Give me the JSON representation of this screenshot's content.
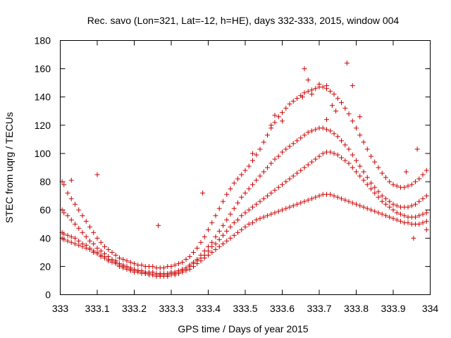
{
  "chart_data": {
    "type": "scatter",
    "title": "Rec. savo (Lon=321, Lat=-12, h=HE), days 332-333, 2015, window 004",
    "xlabel": "GPS time / Days of year 2015",
    "ylabel": "STEC from uqrg / TECUs",
    "xlim": [
      333,
      334
    ],
    "ylim": [
      0,
      180
    ],
    "xticks": [
      "333",
      "333.1",
      "333.2",
      "333.3",
      "333.4",
      "333.5",
      "333.6",
      "333.7",
      "333.8",
      "333.9",
      "334"
    ],
    "yticks": [
      "0",
      "20",
      "40",
      "60",
      "80",
      "100",
      "120",
      "140",
      "160",
      "180"
    ],
    "grid": false,
    "legend": "none",
    "marker": "plus",
    "color": "#cc0000",
    "series": [
      {
        "x": [
          333.005,
          333.01,
          333.02,
          333.03,
          333.04,
          333.05,
          333.06,
          333.07,
          333.08,
          333.09,
          333.1,
          333.11,
          333.12,
          333.13,
          333.14,
          333.15,
          333.16,
          333.17,
          333.18,
          333.19,
          333.2,
          333.21,
          333.22,
          333.23,
          333.24,
          333.25,
          333.26,
          333.27,
          333.28,
          333.29,
          333.3,
          333.31,
          333.32,
          333.33,
          333.34,
          333.35,
          333.36,
          333.37,
          333.38,
          333.39,
          333.4,
          333.41,
          333.42,
          333.43,
          333.44,
          333.45,
          333.46,
          333.47,
          333.48,
          333.49,
          333.5,
          333.51,
          333.52,
          333.53,
          333.54,
          333.55,
          333.56,
          333.57,
          333.58,
          333.59,
          333.6,
          333.61,
          333.62,
          333.63,
          333.64,
          333.65,
          333.66,
          333.67,
          333.68,
          333.69,
          333.7,
          333.71,
          333.72,
          333.73,
          333.74,
          333.75,
          333.76,
          333.77,
          333.78,
          333.79,
          333.8,
          333.81,
          333.82,
          333.83,
          333.84,
          333.85,
          333.86,
          333.87,
          333.88,
          333.89,
          333.9,
          333.91,
          333.92,
          333.93,
          333.94,
          333.95,
          333.96,
          333.97,
          333.98,
          333.99
        ],
        "y": [
          80,
          78,
          72,
          68,
          64,
          60,
          56,
          52,
          48,
          44,
          40,
          37,
          34,
          32,
          30,
          28,
          26,
          25,
          24,
          23,
          22,
          21,
          21,
          20,
          20,
          20,
          19,
          19,
          19,
          20,
          20,
          21,
          22,
          23,
          25,
          27,
          30,
          33,
          37,
          41,
          46,
          51,
          56,
          61,
          66,
          71,
          75,
          79,
          82,
          85,
          88,
          91,
          95,
          99,
          103,
          108,
          113,
          118,
          122,
          126,
          129,
          132,
          135,
          137,
          139,
          141,
          143,
          144,
          145,
          146,
          147,
          147,
          146,
          144,
          142,
          139,
          136,
          132,
          128,
          123,
          118,
          113,
          108,
          103,
          98,
          94,
          90,
          86,
          83,
          80,
          78,
          77,
          76,
          76,
          77,
          78,
          80,
          82,
          85,
          88
        ]
      },
      {
        "x": [
          333.005,
          333.01,
          333.02,
          333.03,
          333.04,
          333.05,
          333.06,
          333.07,
          333.08,
          333.09,
          333.1,
          333.11,
          333.12,
          333.13,
          333.14,
          333.15,
          333.16,
          333.17,
          333.18,
          333.19,
          333.2,
          333.21,
          333.22,
          333.23,
          333.24,
          333.25,
          333.26,
          333.27,
          333.28,
          333.29,
          333.3,
          333.31,
          333.32,
          333.33,
          333.34,
          333.35,
          333.36,
          333.37,
          333.38,
          333.39,
          333.4,
          333.41,
          333.42,
          333.43,
          333.44,
          333.45,
          333.46,
          333.47,
          333.48,
          333.49,
          333.5,
          333.51,
          333.52,
          333.53,
          333.54,
          333.55,
          333.56,
          333.57,
          333.58,
          333.59,
          333.6,
          333.61,
          333.62,
          333.63,
          333.64,
          333.65,
          333.66,
          333.67,
          333.68,
          333.69,
          333.7,
          333.71,
          333.72,
          333.73,
          333.74,
          333.75,
          333.76,
          333.77,
          333.78,
          333.79,
          333.8,
          333.81,
          333.82,
          333.83,
          333.84,
          333.85,
          333.86,
          333.87,
          333.88,
          333.89,
          333.9,
          333.91,
          333.92,
          333.93,
          333.94,
          333.95,
          333.96,
          333.97,
          333.98,
          333.99
        ],
        "y": [
          60,
          58,
          56,
          53,
          50,
          47,
          44,
          41,
          38,
          36,
          33,
          31,
          29,
          27,
          25,
          24,
          22,
          21,
          20,
          19,
          18,
          17,
          17,
          16,
          16,
          16,
          15,
          15,
          15,
          15,
          16,
          16,
          17,
          18,
          19,
          21,
          23,
          25,
          28,
          31,
          34,
          37,
          41,
          45,
          49,
          53,
          57,
          61,
          65,
          69,
          72,
          75,
          78,
          81,
          84,
          87,
          90,
          93,
          96,
          98,
          101,
          103,
          105,
          107,
          109,
          111,
          113,
          115,
          116,
          117,
          118,
          118,
          117,
          116,
          114,
          112,
          109,
          106,
          103,
          99,
          95,
          91,
          87,
          83,
          79,
          76,
          73,
          70,
          68,
          66,
          64,
          63,
          62,
          62,
          62,
          63,
          64,
          66,
          68,
          70
        ]
      },
      {
        "x": [
          333.005,
          333.01,
          333.02,
          333.03,
          333.04,
          333.05,
          333.06,
          333.07,
          333.08,
          333.09,
          333.1,
          333.11,
          333.12,
          333.13,
          333.14,
          333.15,
          333.16,
          333.17,
          333.18,
          333.19,
          333.2,
          333.21,
          333.22,
          333.23,
          333.24,
          333.25,
          333.26,
          333.27,
          333.28,
          333.29,
          333.3,
          333.31,
          333.32,
          333.33,
          333.34,
          333.35,
          333.36,
          333.37,
          333.38,
          333.39,
          333.4,
          333.41,
          333.42,
          333.43,
          333.44,
          333.45,
          333.46,
          333.47,
          333.48,
          333.49,
          333.5,
          333.51,
          333.52,
          333.53,
          333.54,
          333.55,
          333.56,
          333.57,
          333.58,
          333.59,
          333.6,
          333.61,
          333.62,
          333.63,
          333.64,
          333.65,
          333.66,
          333.67,
          333.68,
          333.69,
          333.7,
          333.71,
          333.72,
          333.73,
          333.74,
          333.75,
          333.76,
          333.77,
          333.78,
          333.79,
          333.8,
          333.81,
          333.82,
          333.83,
          333.84,
          333.85,
          333.86,
          333.87,
          333.88,
          333.89,
          333.9,
          333.91,
          333.92,
          333.93,
          333.94,
          333.95,
          333.96,
          333.97,
          333.98,
          333.99
        ],
        "y": [
          44,
          43,
          42,
          41,
          40,
          38,
          36,
          35,
          33,
          31,
          30,
          28,
          27,
          25,
          24,
          23,
          21,
          20,
          19,
          18,
          17,
          17,
          16,
          15,
          15,
          14,
          14,
          14,
          14,
          14,
          15,
          15,
          16,
          17,
          18,
          20,
          22,
          24,
          26,
          28,
          31,
          34,
          36,
          39,
          42,
          45,
          48,
          51,
          53,
          56,
          58,
          60,
          62,
          64,
          66,
          68,
          70,
          72,
          74,
          76,
          78,
          80,
          82,
          84,
          86,
          88,
          90,
          92,
          94,
          96,
          98,
          100,
          101,
          101,
          100,
          99,
          97,
          95,
          93,
          90,
          87,
          84,
          81,
          78,
          75,
          72,
          69,
          66,
          64,
          62,
          60,
          58,
          57,
          56,
          55,
          55,
          55,
          56,
          57,
          58
        ]
      },
      {
        "x": [
          333.005,
          333.01,
          333.02,
          333.03,
          333.04,
          333.05,
          333.06,
          333.07,
          333.08,
          333.09,
          333.1,
          333.11,
          333.12,
          333.13,
          333.14,
          333.15,
          333.16,
          333.17,
          333.18,
          333.19,
          333.2,
          333.21,
          333.22,
          333.23,
          333.24,
          333.25,
          333.26,
          333.27,
          333.28,
          333.29,
          333.3,
          333.31,
          333.32,
          333.33,
          333.34,
          333.35,
          333.36,
          333.37,
          333.38,
          333.39,
          333.4,
          333.41,
          333.42,
          333.43,
          333.44,
          333.45,
          333.46,
          333.47,
          333.48,
          333.49,
          333.5,
          333.51,
          333.52,
          333.53,
          333.54,
          333.55,
          333.56,
          333.57,
          333.58,
          333.59,
          333.6,
          333.61,
          333.62,
          333.63,
          333.64,
          333.65,
          333.66,
          333.67,
          333.68,
          333.69,
          333.7,
          333.71,
          333.72,
          333.73,
          333.74,
          333.75,
          333.76,
          333.77,
          333.78,
          333.79,
          333.8,
          333.81,
          333.82,
          333.83,
          333.84,
          333.85,
          333.86,
          333.87,
          333.88,
          333.89,
          333.9,
          333.91,
          333.92,
          333.93,
          333.94,
          333.95,
          333.96,
          333.97,
          333.98,
          333.99
        ],
        "y": [
          40,
          39,
          38,
          37,
          36,
          35,
          34,
          33,
          32,
          30,
          29,
          27,
          26,
          24,
          23,
          22,
          20,
          19,
          18,
          17,
          16,
          16,
          15,
          15,
          14,
          14,
          13,
          13,
          13,
          13,
          14,
          14,
          15,
          16,
          17,
          18,
          20,
          22,
          24,
          26,
          28,
          30,
          32,
          34,
          36,
          38,
          40,
          42,
          44,
          46,
          48,
          50,
          51,
          53,
          54,
          55,
          56,
          57,
          58,
          59,
          60,
          61,
          62,
          63,
          64,
          65,
          66,
          67,
          68,
          69,
          70,
          71,
          71,
          71,
          70,
          69,
          68,
          67,
          66,
          65,
          64,
          63,
          62,
          61,
          60,
          59,
          58,
          57,
          56,
          55,
          54,
          53,
          52,
          51,
          51,
          50,
          50,
          50,
          51,
          52
        ]
      },
      {
        "x": [
          333.66,
          333.67,
          333.775,
          333.79,
          333.655,
          333.68,
          333.7,
          333.72,
          333.735,
          333.58,
          333.57,
          333.6,
          333.385,
          333.265,
          333.1,
          333.03,
          333.935,
          333.965,
          333.955,
          333.99,
          333.72,
          333.745,
          333.81,
          333.52
        ],
        "y": [
          160,
          152,
          164,
          148,
          140,
          142,
          149,
          148,
          134,
          127,
          120,
          123,
          72,
          49,
          85,
          81,
          87,
          103,
          40,
          46,
          124,
          130,
          126,
          100
        ]
      }
    ]
  }
}
